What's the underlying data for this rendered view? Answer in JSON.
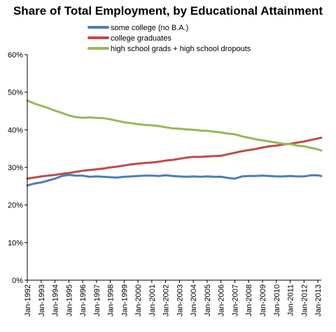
{
  "chart_data": {
    "type": "line",
    "title": "Share of Total Employment, by Educational Attainment",
    "xlabel": "",
    "ylabel": "",
    "ylim": [
      0,
      60
    ],
    "yticks": [
      "0%",
      "10%",
      "20%",
      "30%",
      "40%",
      "50%",
      "60%"
    ],
    "ytick_values": [
      0,
      10,
      20,
      30,
      40,
      50,
      60
    ],
    "xticks": [
      "Jan-1992",
      "Jan-1993",
      "Jan-1994",
      "Jan-1995",
      "Jan-1996",
      "Jan-1997",
      "Jan-1998",
      "Jan-1999",
      "Jan-2000",
      "Jan-2001",
      "Jan-2002",
      "Jan-2003",
      "Jan-2004",
      "Jan-2005",
      "Jan-2006",
      "Jan-2007",
      "Jan-2008",
      "Jan-2009",
      "Jan-2010",
      "Jan-2011",
      "Jan-2012",
      "Jan-2013"
    ],
    "grid": false,
    "legend_position": "top",
    "x": [
      1992.0,
      1992.5,
      1993.0,
      1993.5,
      1994.0,
      1994.5,
      1995.0,
      1995.5,
      1996.0,
      1996.5,
      1997.0,
      1997.5,
      1998.0,
      1998.5,
      1999.0,
      1999.5,
      2000.0,
      2000.5,
      2001.0,
      2001.5,
      2002.0,
      2002.5,
      2003.0,
      2003.5,
      2004.0,
      2004.5,
      2005.0,
      2005.5,
      2006.0,
      2006.5,
      2007.0,
      2007.5,
      2008.0,
      2008.5,
      2009.0,
      2009.5,
      2010.0,
      2010.5,
      2011.0,
      2011.5,
      2012.0,
      2012.5,
      2013.0,
      2013.25
    ],
    "series": [
      {
        "name": "some college (no B.A.)",
        "color": "#4a7ebb",
        "values": [
          25.2,
          25.7,
          26.0,
          26.5,
          27.0,
          27.7,
          28.0,
          27.8,
          27.8,
          27.5,
          27.6,
          27.5,
          27.4,
          27.3,
          27.5,
          27.6,
          27.7,
          27.8,
          27.8,
          27.7,
          27.9,
          27.7,
          27.6,
          27.5,
          27.6,
          27.5,
          27.6,
          27.5,
          27.5,
          27.2,
          27.0,
          27.6,
          27.7,
          27.7,
          27.8,
          27.7,
          27.6,
          27.6,
          27.7,
          27.6,
          27.6,
          27.9,
          27.9,
          27.7
        ]
      },
      {
        "name": "college graduates",
        "color": "#be4b48",
        "values": [
          27.0,
          27.3,
          27.6,
          27.8,
          28.0,
          28.3,
          28.5,
          28.8,
          29.1,
          29.3,
          29.5,
          29.7,
          30.0,
          30.2,
          30.5,
          30.8,
          31.0,
          31.2,
          31.3,
          31.5,
          31.8,
          32.0,
          32.3,
          32.6,
          32.8,
          32.8,
          32.9,
          33.0,
          33.1,
          33.5,
          33.9,
          34.3,
          34.6,
          34.9,
          35.3,
          35.6,
          35.8,
          36.1,
          36.3,
          36.6,
          36.9,
          37.3,
          37.7,
          37.9
        ]
      },
      {
        "name": "high school grads + high school dropouts",
        "color": "#98b954",
        "values": [
          47.8,
          47.0,
          46.4,
          45.8,
          45.1,
          44.5,
          43.8,
          43.4,
          43.2,
          43.3,
          43.2,
          43.1,
          42.8,
          42.4,
          42.0,
          41.8,
          41.5,
          41.3,
          41.2,
          41.0,
          40.7,
          40.4,
          40.3,
          40.1,
          40.0,
          39.8,
          39.7,
          39.5,
          39.3,
          39.0,
          38.8,
          38.3,
          37.9,
          37.5,
          37.2,
          36.9,
          36.6,
          36.3,
          36.2,
          35.8,
          35.6,
          35.2,
          34.8,
          34.5
        ]
      }
    ]
  }
}
